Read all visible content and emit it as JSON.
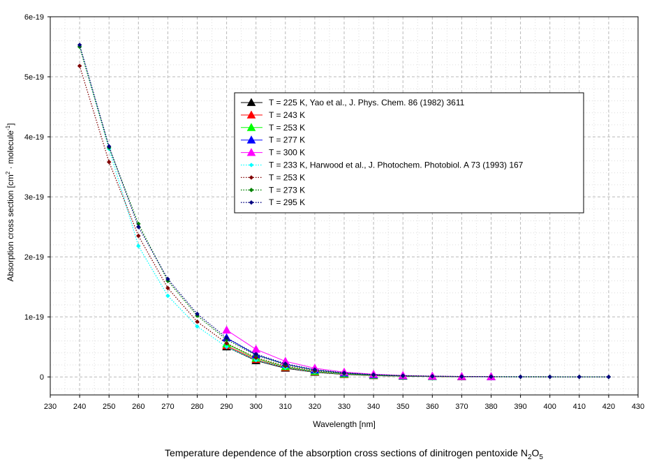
{
  "chart_data": {
    "type": "line",
    "title": "",
    "caption": "Temperature dependence of the absorption cross sections of dinitrogen pentoxide N",
    "caption_sub1": "2",
    "caption_mid": "O",
    "caption_sub2": "5",
    "xlabel": "Wavelength [nm]",
    "ylabel_main": "Absorption cross section [cm",
    "ylabel_sup1": "2",
    "ylabel_mid": " · molecule",
    "ylabel_sup2": "-1",
    "ylabel_end": "]",
    "xlim": [
      230,
      430
    ],
    "ylim": [
      -3e-20,
      6e-19
    ],
    "x_ticks": [
      "230",
      "240",
      "250",
      "260",
      "270",
      "280",
      "290",
      "300",
      "310",
      "320",
      "330",
      "340",
      "350",
      "360",
      "370",
      "380",
      "390",
      "400",
      "410",
      "420",
      "430"
    ],
    "y_ticks": [
      {
        "value": 0,
        "label": "0"
      },
      {
        "value": 1e-19,
        "label": "1e-19"
      },
      {
        "value": 2e-19,
        "label": "2e-19"
      },
      {
        "value": 3e-19,
        "label": "3e-19"
      },
      {
        "value": 4e-19,
        "label": "4e-19"
      },
      {
        "value": 5e-19,
        "label": "5e-19"
      },
      {
        "value": 6e-19,
        "label": "6e-19"
      }
    ],
    "grid": true,
    "legend_position": "top-right",
    "series": [
      {
        "name": "T = 225 K, Yao et al., J. Phys. Chem. 86 (1982) 3611",
        "color": "#000000",
        "marker": "triangle",
        "line": "solid",
        "x": [
          290,
          300,
          310,
          320,
          330,
          340,
          350,
          360,
          370,
          380
        ],
        "y": [
          5e-20,
          2.7e-20,
          1.45e-20,
          7.6e-21,
          4e-21,
          2.1e-21,
          1.1e-21,
          6e-22,
          3e-22,
          1.5e-22
        ]
      },
      {
        "name": "T = 243 K",
        "color": "#ff0000",
        "marker": "triangle",
        "line": "solid",
        "x": [
          290,
          300,
          310,
          320,
          330,
          340,
          350,
          360,
          370,
          380
        ],
        "y": [
          5.2e-20,
          2.9e-20,
          1.55e-20,
          8.2e-21,
          4.3e-21,
          2.3e-21,
          1.2e-21,
          6.5e-22,
          3.3e-22,
          1.7e-22
        ]
      },
      {
        "name": "T = 253 K",
        "color": "#00ff00",
        "marker": "triangle",
        "line": "solid",
        "x": [
          290,
          300,
          310,
          320,
          330,
          340,
          350,
          360,
          370,
          380
        ],
        "y": [
          5.5e-20,
          3.1e-20,
          1.7e-20,
          9e-21,
          4.8e-21,
          2.6e-21,
          1.4e-21,
          7.5e-22,
          3.9e-22,
          2e-22
        ]
      },
      {
        "name": "T = 277 K",
        "color": "#0000ff",
        "marker": "triangle",
        "line": "solid",
        "x": [
          290,
          300,
          310,
          320,
          330,
          340,
          350,
          360,
          370,
          380
        ],
        "y": [
          6.5e-20,
          3.7e-20,
          2.1e-20,
          1.15e-20,
          6.3e-21,
          3.4e-21,
          1.9e-21,
          1e-21,
          5.4e-22,
          2.8e-22
        ]
      },
      {
        "name": "T = 300 K",
        "color": "#ff00ff",
        "marker": "triangle",
        "line": "solid",
        "x": [
          290,
          300,
          310,
          320,
          330,
          340,
          350,
          360,
          370,
          380
        ],
        "y": [
          7.8e-20,
          4.6e-20,
          2.6e-20,
          1.45e-20,
          8e-21,
          4.4e-21,
          2.4e-21,
          1.3e-21,
          7e-22,
          3.7e-22
        ]
      },
      {
        "name": "T = 233 K, Harwood et al., J. Photochem. Photobiol. A 73 (1993) 167",
        "color": "#00ffff",
        "marker": "diamond",
        "line": "dotted",
        "x": [
          240,
          250,
          260,
          270,
          280,
          290,
          300,
          310,
          320,
          330,
          340,
          350,
          360,
          370,
          380,
          390,
          400,
          410,
          420
        ],
        "y": [
          5.5e-19,
          3.8e-19,
          2.18e-19,
          1.35e-19,
          8.4e-20,
          5e-20,
          2.8e-20,
          1.55e-20,
          8.3e-21,
          4.5e-21,
          2.5e-21,
          1.4e-21,
          8e-22,
          4.5e-22,
          2.6e-22,
          1.5e-22,
          9e-23,
          5e-23,
          3e-23
        ]
      },
      {
        "name": "T = 253 K",
        "color": "#800000",
        "marker": "diamond",
        "line": "dotted",
        "x": [
          240,
          250,
          260,
          270,
          280,
          290,
          300,
          310,
          320,
          330,
          340,
          350,
          360,
          370,
          380,
          390,
          400,
          410,
          420
        ],
        "y": [
          5.18e-19,
          3.58e-19,
          2.35e-19,
          1.48e-19,
          9.2e-20,
          5.6e-20,
          3.2e-20,
          1.8e-20,
          9.6e-21,
          5.3e-21,
          2.9e-21,
          1.6e-21,
          9e-22,
          5e-22,
          2.9e-22,
          1.7e-22,
          1e-22,
          6e-23,
          3.5e-23
        ]
      },
      {
        "name": "T = 273 K",
        "color": "#008000",
        "marker": "diamond",
        "line": "dotted",
        "x": [
          240,
          250,
          260,
          270,
          280,
          290,
          300,
          310,
          320,
          330,
          340,
          350,
          360,
          370,
          380,
          390,
          400,
          410,
          420
        ],
        "y": [
          5.5e-19,
          3.82e-19,
          2.55e-19,
          1.6e-19,
          1.02e-19,
          6.2e-20,
          3.6e-20,
          2.05e-20,
          1.12e-20,
          6.2e-21,
          3.4e-21,
          1.9e-21,
          1.05e-21,
          6e-22,
          3.4e-22,
          2e-22,
          1.2e-22,
          7e-23,
          4e-23
        ]
      },
      {
        "name": "T = 295 K",
        "color": "#000080",
        "marker": "diamond",
        "line": "dotted",
        "x": [
          240,
          250,
          260,
          270,
          280,
          290,
          300,
          310,
          320,
          330,
          340,
          350,
          360,
          370,
          380,
          390,
          400,
          410,
          420
        ],
        "y": [
          5.53e-19,
          3.84e-19,
          2.5e-19,
          1.63e-19,
          1.05e-19,
          6.5e-20,
          3.8e-20,
          2.2e-20,
          1.22e-20,
          6.8e-21,
          3.8e-21,
          2.1e-21,
          1.2e-21,
          6.8e-22,
          3.9e-22,
          2.3e-22,
          1.4e-22,
          8e-23,
          5e-23
        ]
      }
    ]
  }
}
